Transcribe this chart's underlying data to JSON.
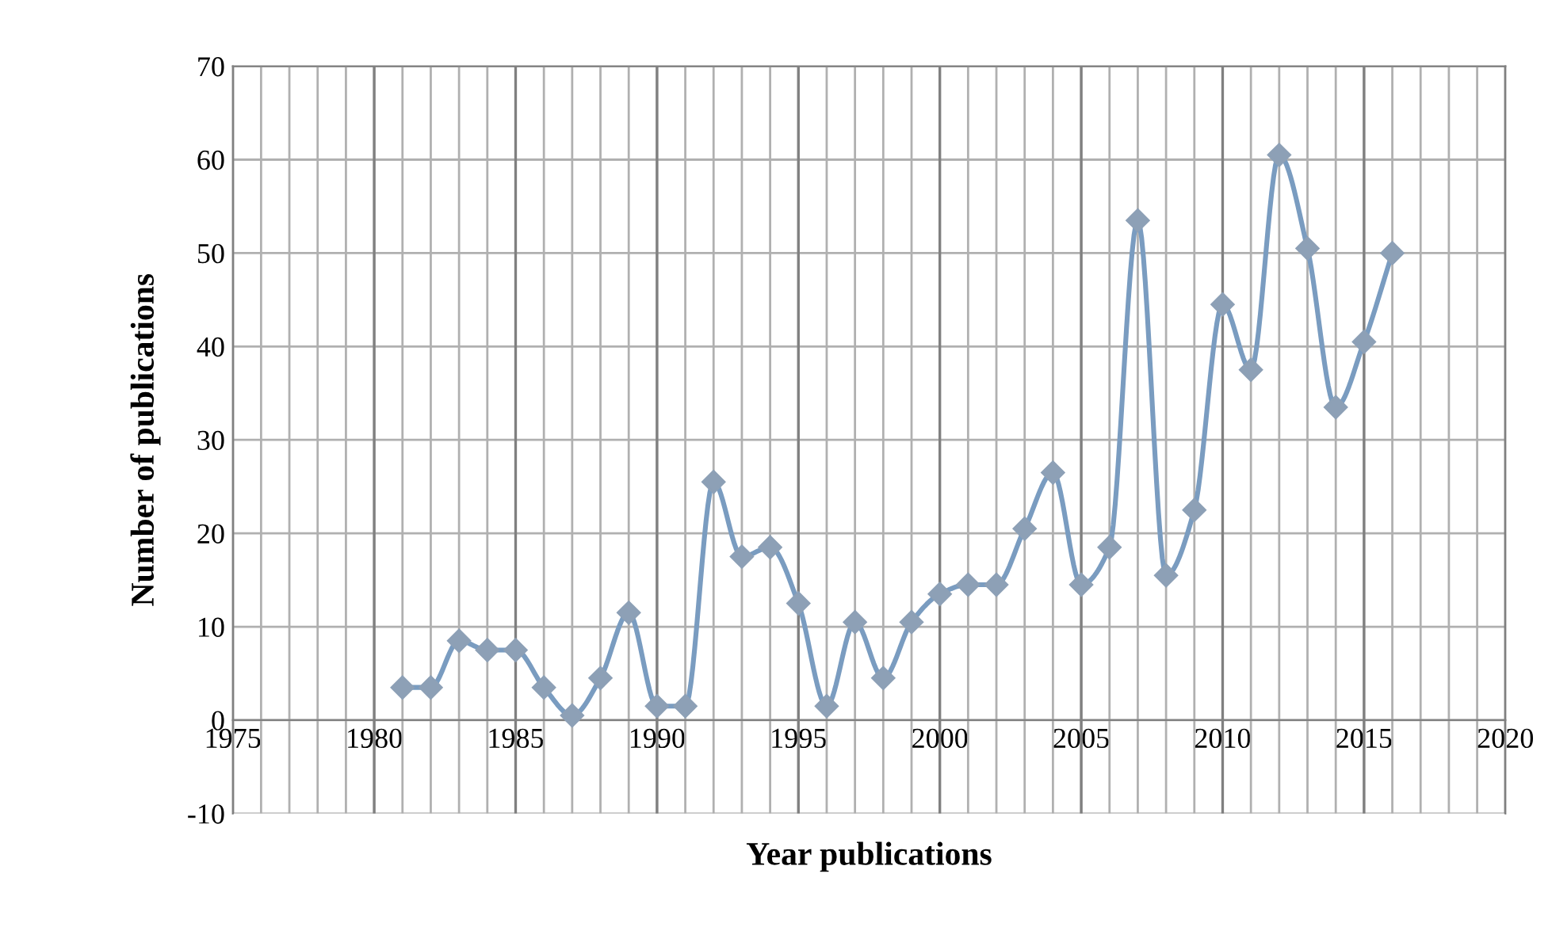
{
  "chart_data": {
    "type": "line",
    "xlabel": "Year publications",
    "ylabel": "Number of publications",
    "x": [
      1981,
      1982,
      1983,
      1984,
      1985,
      1986,
      1987,
      1988,
      1989,
      1990,
      1991,
      1992,
      1993,
      1994,
      1995,
      1996,
      1997,
      1998,
      1999,
      2000,
      2001,
      2002,
      2003,
      2004,
      2005,
      2006,
      2007,
      2008,
      2009,
      2010,
      2011,
      2012,
      2013,
      2014,
      2015,
      2016
    ],
    "series": [
      {
        "color": "#7a9cc0",
        "values": [
          3.5,
          3.5,
          8.5,
          7.5,
          7.5,
          3.5,
          0.5,
          4.5,
          11.5,
          1.5,
          1.5,
          25.5,
          17.5,
          18.5,
          12.5,
          1.5,
          10.5,
          4.5,
          10.5,
          13.5,
          14.5,
          14.5,
          20.5,
          26.5,
          14.5,
          18.5,
          53.5,
          15.5,
          22.5,
          44.5,
          37.5,
          60.5,
          50.5,
          33.5,
          40.5,
          50
        ]
      }
    ],
    "xlim": [
      1975,
      2020
    ],
    "xticks": [
      1975,
      {
        "value": 1976,
        "label": null
      },
      {
        "value": 1977,
        "label": null
      },
      {
        "value": 1978,
        "label": null
      },
      {
        "value": 1979,
        "label": null
      },
      1980,
      {
        "value": 1981,
        "label": null
      },
      {
        "value": 1982,
        "label": null
      },
      {
        "value": 1983,
        "label": null
      },
      {
        "value": 1984,
        "label": null
      },
      1985,
      {
        "value": 1986,
        "label": null
      },
      {
        "value": 1987,
        "label": null
      },
      {
        "value": 1988,
        "label": null
      },
      {
        "value": 1989,
        "label": null
      },
      1990,
      {
        "value": 1991,
        "label": null
      },
      {
        "value": 1992,
        "label": null
      },
      {
        "value": 1993,
        "label": null
      },
      {
        "value": 1994,
        "label": null
      },
      1995,
      {
        "value": 1996,
        "label": null
      },
      {
        "value": 1997,
        "label": null
      },
      {
        "value": 1998,
        "label": null
      },
      {
        "value": 1999,
        "label": null
      },
      2000,
      {
        "value": 2001,
        "label": null
      },
      {
        "value": 2002,
        "label": null
      },
      {
        "value": 2003,
        "label": null
      },
      {
        "value": 2004,
        "label": null
      },
      2005,
      {
        "value": 2006,
        "label": null
      },
      {
        "value": 2007,
        "label": null
      },
      {
        "value": 2008,
        "label": null
      },
      {
        "value": 2009,
        "label": null
      },
      2010,
      {
        "value": 2011,
        "label": null
      },
      {
        "value": 2012,
        "label": null
      },
      {
        "value": 2013,
        "label": null
      },
      {
        "value": 2014,
        "label": null
      },
      2015,
      {
        "value": 2016,
        "label": null
      },
      {
        "value": 2017,
        "label": null
      },
      {
        "value": 2018,
        "label": null
      },
      {
        "value": 2019,
        "label": null
      },
      2020
    ],
    "ylim": [
      -10,
      70
    ],
    "yticks": [
      -10,
      0,
      10,
      20,
      30,
      40,
      50,
      60,
      70
    ],
    "grid": true,
    "marker": "diamond",
    "line_style": "solid",
    "legend": false
  }
}
